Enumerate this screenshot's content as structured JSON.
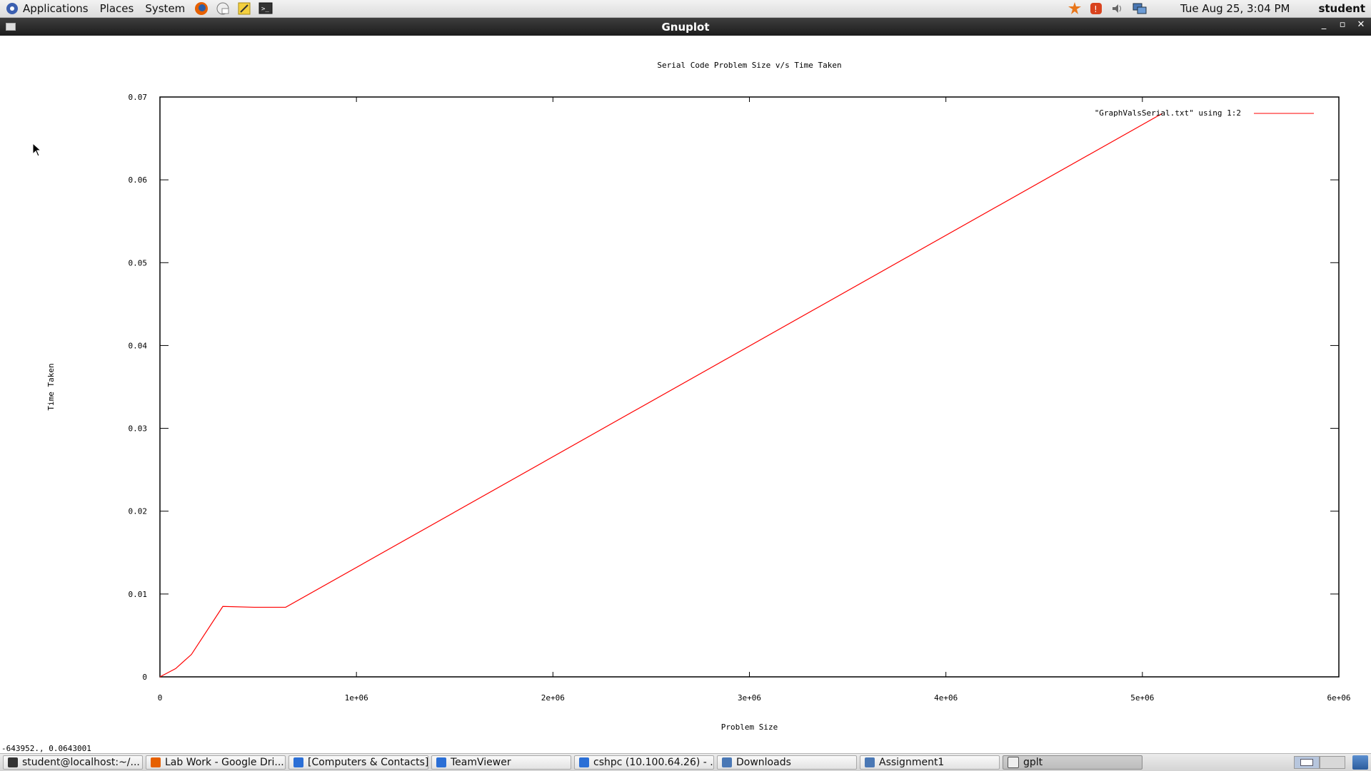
{
  "top_panel": {
    "menus": [
      "Applications",
      "Places",
      "System"
    ],
    "launchers": [
      "firefox-icon",
      "mail-icon",
      "notes-icon",
      "terminal-icon"
    ],
    "clock": "Tue Aug 25,  3:04 PM",
    "user": "student"
  },
  "window": {
    "title": "Gnuplot"
  },
  "status_readout": "-643952.,  0.0643001",
  "taskbar": {
    "tasks": [
      {
        "label": "student@localhost:~/...",
        "icon": "terminal-icon",
        "active": false
      },
      {
        "label": "Lab Work - Google Dri...",
        "icon": "firefox-icon",
        "active": false
      },
      {
        "label": "[Computers & Contacts]",
        "icon": "teamviewer-icon",
        "active": false
      },
      {
        "label": "TeamViewer",
        "icon": "teamviewer-icon",
        "active": false
      },
      {
        "label": "cshpc (10.100.64.26) - ...",
        "icon": "teamviewer-icon",
        "active": false
      },
      {
        "label": "Downloads",
        "icon": "folder-icon",
        "active": false
      },
      {
        "label": "Assignment1",
        "icon": "folder-icon",
        "active": false
      },
      {
        "label": "gplt",
        "icon": "window-icon",
        "active": true
      }
    ]
  },
  "chart_data": {
    "type": "line",
    "title": "Serial Code Problem Size v/s Time Taken",
    "xlabel": "Problem Size",
    "ylabel": "Time Taken",
    "xlim": [
      0,
      6000000
    ],
    "ylim": [
      0,
      0.07
    ],
    "x_ticks": [
      "0",
      "1e+06",
      "2e+06",
      "3e+06",
      "4e+06",
      "5e+06",
      "6e+06"
    ],
    "y_ticks": [
      "0",
      "0.01",
      "0.02",
      "0.03",
      "0.04",
      "0.05",
      "0.06",
      "0.07"
    ],
    "grid": false,
    "legend_position": "top-right",
    "series": [
      {
        "name": "\"GraphValsSerial.txt\" using 1:2",
        "color": "#ff0000",
        "x": [
          0,
          80000,
          160000,
          320000,
          480000,
          640000,
          5100000
        ],
        "y": [
          0,
          0.001,
          0.0027,
          0.0085,
          0.0084,
          0.0084,
          0.068
        ]
      }
    ]
  }
}
